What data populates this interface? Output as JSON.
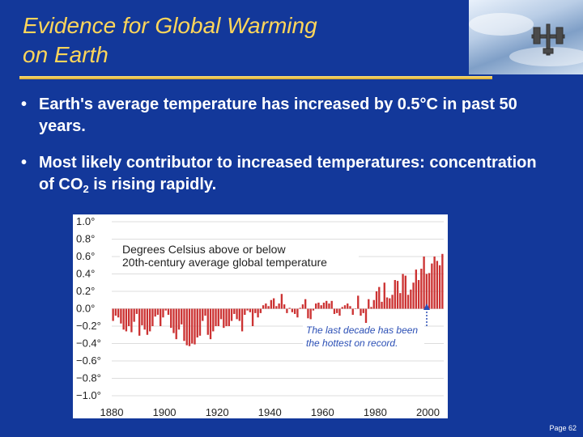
{
  "slide": {
    "title_line1": "Evidence for Global Warming",
    "title_line2": "on Earth",
    "bullets": [
      {
        "text": "Earth's average temperature has increased by 0.5°C in past 50 years."
      },
      {
        "text_before": "Most likely contributor to increased temperatures: concentration of CO",
        "subscript": "2",
        "text_after": " is rising rapidly."
      }
    ],
    "bullet_char": "•",
    "page_number": "Page 62",
    "logo_icon": "space-station-image"
  },
  "chart_data": {
    "type": "bar",
    "title": "Degrees Celsius above or below",
    "subtitle": "20th-century average global temperature",
    "annotation_line1": "The last decade has been",
    "annotation_line2": "the hottest on record.",
    "ylim": [
      -1.0,
      1.0
    ],
    "y_tick_labels": [
      "1.0°",
      "0.8°",
      "0.6°",
      "0.4°",
      "0.2°",
      "0.0°",
      "−0.2°",
      "−0.4°",
      "−0.6°",
      "−0.8°",
      "−1.0°"
    ],
    "y_tick_values": [
      1.0,
      0.8,
      0.6,
      0.4,
      0.2,
      0.0,
      -0.2,
      -0.4,
      -0.6,
      -0.8,
      -1.0
    ],
    "x_tick_labels": [
      "1880",
      "1900",
      "1920",
      "1940",
      "1960",
      "1980",
      "2000"
    ],
    "x_tick_values": [
      1880,
      1900,
      1920,
      1940,
      1960,
      1980,
      2000
    ],
    "xlim": [
      1880,
      2006
    ],
    "start_year": 1880,
    "colors": {
      "bar": "#cc3333",
      "axis_text": "#222222",
      "grid": "#bbbbbb",
      "annotation": "#2b4fb5"
    },
    "values": [
      -0.14,
      -0.08,
      -0.1,
      -0.17,
      -0.24,
      -0.26,
      -0.2,
      -0.27,
      -0.15,
      -0.06,
      -0.31,
      -0.19,
      -0.24,
      -0.3,
      -0.26,
      -0.2,
      -0.09,
      -0.07,
      -0.2,
      -0.1,
      -0.02,
      -0.07,
      -0.22,
      -0.28,
      -0.35,
      -0.24,
      -0.18,
      -0.37,
      -0.42,
      -0.43,
      -0.4,
      -0.41,
      -0.33,
      -0.31,
      -0.14,
      -0.08,
      -0.3,
      -0.35,
      -0.26,
      -0.2,
      -0.2,
      -0.12,
      -0.22,
      -0.2,
      -0.2,
      -0.14,
      -0.06,
      -0.12,
      -0.14,
      -0.26,
      -0.07,
      -0.02,
      -0.04,
      -0.2,
      -0.05,
      -0.1,
      -0.05,
      0.04,
      0.06,
      0.03,
      0.1,
      0.12,
      0.03,
      0.06,
      0.17,
      0.05,
      -0.05,
      0.01,
      -0.04,
      -0.06,
      -0.1,
      0.01,
      0.05,
      0.11,
      -0.11,
      -0.12,
      -0.02,
      0.06,
      0.07,
      0.04,
      0.07,
      0.09,
      0.06,
      0.09,
      -0.06,
      -0.05,
      -0.08,
      0.02,
      0.04,
      0.06,
      0.03,
      -0.07,
      0.0,
      0.15,
      -0.08,
      -0.05,
      -0.17,
      0.11,
      0.02,
      0.1,
      0.2,
      0.25,
      0.08,
      0.3,
      0.13,
      0.12,
      0.16,
      0.33,
      0.32,
      0.18,
      0.4,
      0.38,
      0.16,
      0.22,
      0.3,
      0.45,
      0.33,
      0.46,
      0.6,
      0.4,
      0.41,
      0.52,
      0.6,
      0.55,
      0.5,
      0.63
    ]
  }
}
